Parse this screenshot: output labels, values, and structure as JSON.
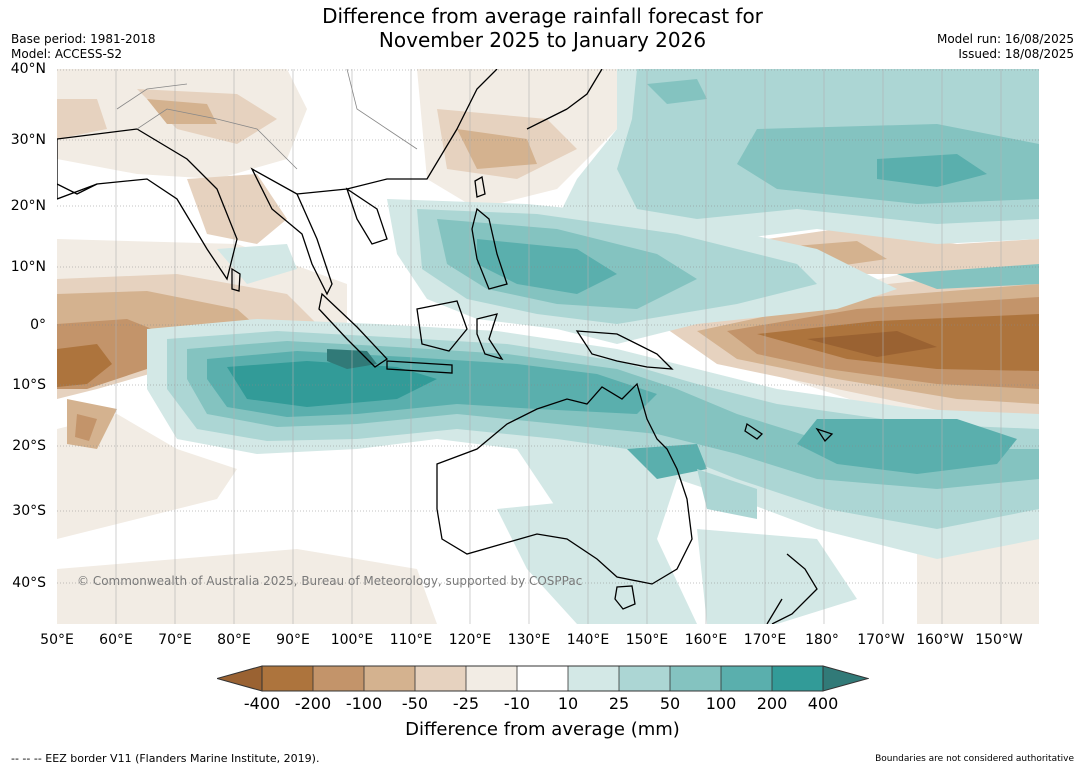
{
  "title_line1": "Difference from average rainfall forecast for",
  "title_line2": "November 2025 to January 2026",
  "base_period": "Base period: 1981-2018",
  "model": "Model: ACCESS-S2",
  "model_run": "Model run: 16/08/2025",
  "issued": "Issued: 18/08/2025",
  "copyright": "© Commonwealth of Australia 2025, Bureau of Meteorology, supported by COSPPac",
  "lat_labels": [
    "40°N",
    "30°N",
    "20°N",
    "10°N",
    "0°",
    "10°S",
    "20°S",
    "30°S",
    "40°S"
  ],
  "lon_labels": [
    "50°E",
    "60°E",
    "70°E",
    "80°E",
    "90°E",
    "100°E",
    "110°E",
    "120°E",
    "130°E",
    "140°E",
    "150°E",
    "160°E",
    "170°E",
    "180°",
    "170°W",
    "160°W",
    "150°W"
  ],
  "legend": {
    "ticks": [
      "-400",
      "-200",
      "-100",
      "-50",
      "-25",
      "-10",
      "10",
      "25",
      "50",
      "100",
      "200",
      "400"
    ],
    "title": "Difference from average (mm)",
    "colors": {
      "lt_neg400": "#9a6232",
      "neg400_200": "#ad743d",
      "neg200_100": "#c3946a",
      "neg100_50": "#d4b28f",
      "neg50_25": "#e6d2bf",
      "neg25_10": "#f2ece4",
      "neutral": "#ffffff",
      "pos10_25": "#d3e8e6",
      "pos25_50": "#acd6d4",
      "pos50_100": "#84c3c0",
      "pos100_200": "#5aafad",
      "pos200_400": "#329b98",
      "gt400": "#317a78"
    }
  },
  "eez_note": "--  --  -- EEZ border V11 (Flanders Marine Institute, 2019).",
  "boundary_note": "Boundaries are not considered authoritative"
}
